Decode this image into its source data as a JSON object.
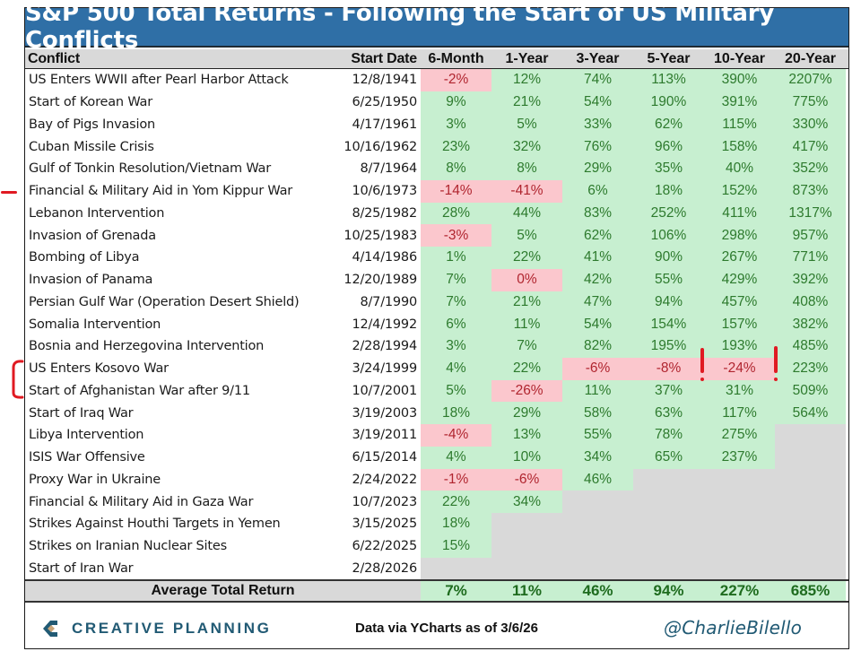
{
  "title": "S&P 500 Total Returns - Following the Start of US Military Conflicts",
  "columns": [
    "Conflict",
    "Start Date",
    "6-Month",
    "1-Year",
    "3-Year",
    "5-Year",
    "10-Year",
    "20-Year"
  ],
  "rows": [
    {
      "conflict": "US Enters WWII after Pearl Harbor Attack",
      "date": "12/8/1941",
      "values": [
        "-2%",
        "12%",
        "74%",
        "113%",
        "390%",
        "2207%"
      ]
    },
    {
      "conflict": "Start of Korean War",
      "date": "6/25/1950",
      "values": [
        "9%",
        "21%",
        "54%",
        "190%",
        "391%",
        "775%"
      ]
    },
    {
      "conflict": "Bay of Pigs Invasion",
      "date": "4/17/1961",
      "values": [
        "3%",
        "5%",
        "33%",
        "62%",
        "115%",
        "330%"
      ]
    },
    {
      "conflict": "Cuban Missile Crisis",
      "date": "10/16/1962",
      "values": [
        "23%",
        "32%",
        "76%",
        "96%",
        "158%",
        "417%"
      ]
    },
    {
      "conflict": "Gulf of Tonkin Resolution/Vietnam War",
      "date": "8/7/1964",
      "values": [
        "8%",
        "8%",
        "29%",
        "35%",
        "40%",
        "352%"
      ]
    },
    {
      "conflict": "Financial & Military Aid in Yom Kippur War",
      "date": "10/6/1973",
      "values": [
        "-14%",
        "-41%",
        "6%",
        "18%",
        "152%",
        "873%"
      ]
    },
    {
      "conflict": "Lebanon Intervention",
      "date": "8/25/1982",
      "values": [
        "28%",
        "44%",
        "83%",
        "252%",
        "411%",
        "1317%"
      ]
    },
    {
      "conflict": "Invasion of Grenada",
      "date": "10/25/1983",
      "values": [
        "-3%",
        "5%",
        "62%",
        "106%",
        "298%",
        "957%"
      ]
    },
    {
      "conflict": "Bombing of Libya",
      "date": "4/14/1986",
      "values": [
        "1%",
        "22%",
        "41%",
        "90%",
        "267%",
        "771%"
      ]
    },
    {
      "conflict": "Invasion of Panama",
      "date": "12/20/1989",
      "values": [
        "7%",
        "0%",
        "42%",
        "55%",
        "429%",
        "392%"
      ]
    },
    {
      "conflict": "Persian Gulf War (Operation Desert Shield)",
      "date": "8/7/1990",
      "values": [
        "7%",
        "21%",
        "47%",
        "94%",
        "457%",
        "408%"
      ]
    },
    {
      "conflict": "Somalia Intervention",
      "date": "12/4/1992",
      "values": [
        "6%",
        "11%",
        "54%",
        "154%",
        "157%",
        "382%"
      ]
    },
    {
      "conflict": "Bosnia and Herzegovina Intervention",
      "date": "2/28/1994",
      "values": [
        "3%",
        "7%",
        "82%",
        "195%",
        "193%",
        "485%"
      ]
    },
    {
      "conflict": "US Enters Kosovo War",
      "date": "3/24/1999",
      "values": [
        "4%",
        "22%",
        "-6%",
        "-8%",
        "-24%",
        "223%"
      ]
    },
    {
      "conflict": "Start of Afghanistan War after 9/11",
      "date": "10/7/2001",
      "values": [
        "5%",
        "-26%",
        "11%",
        "37%",
        "31%",
        "509%"
      ]
    },
    {
      "conflict": "Start of Iraq War",
      "date": "3/19/2003",
      "values": [
        "18%",
        "29%",
        "58%",
        "63%",
        "117%",
        "564%"
      ]
    },
    {
      "conflict": "Libya Intervention",
      "date": "3/19/2011",
      "values": [
        "-4%",
        "13%",
        "55%",
        "78%",
        "275%",
        null
      ]
    },
    {
      "conflict": "ISIS War Offensive",
      "date": "6/15/2014",
      "values": [
        "4%",
        "10%",
        "34%",
        "65%",
        "237%",
        null
      ]
    },
    {
      "conflict": "Proxy War in Ukraine",
      "date": "2/24/2022",
      "values": [
        "-1%",
        "-6%",
        "46%",
        null,
        null,
        null
      ]
    },
    {
      "conflict": "Financial & Military Aid in Gaza War",
      "date": "10/7/2023",
      "values": [
        "22%",
        "34%",
        null,
        null,
        null,
        null
      ]
    },
    {
      "conflict": "Strikes Against Houthi Targets in Yemen",
      "date": "3/15/2025",
      "values": [
        "18%",
        null,
        null,
        null,
        null,
        null
      ]
    },
    {
      "conflict": "Strikes on Iranian Nuclear Sites",
      "date": "6/22/2025",
      "values": [
        "15%",
        null,
        null,
        null,
        null,
        null
      ]
    },
    {
      "conflict": "Start of Iran War",
      "date": "2/28/2026",
      "values": [
        null,
        null,
        null,
        null,
        null,
        null
      ]
    }
  ],
  "average": {
    "label": "Average Total Return",
    "values": [
      "7%",
      "11%",
      "46%",
      "94%",
      "227%",
      "685%"
    ]
  },
  "footer": {
    "logo_text": "CREATIVE PLANNING",
    "source": "Data via YCharts as of 3/6/26",
    "handle": "@CharlieBilello"
  },
  "colors": {
    "title_bg": "#2f6fa6",
    "positive_bg": "#c7efd0",
    "positive_text": "#2d7a2d",
    "negative_bg": "#fbc7cd",
    "negative_text": "#b0252f",
    "empty_bg": "#d9d9d9",
    "annotation": "#e01a22"
  },
  "chart_data": {
    "type": "table",
    "title": "S&P 500 Total Returns - Following the Start of US Military Conflicts",
    "columns": [
      "Conflict",
      "Start Date",
      "6-Month",
      "1-Year",
      "3-Year",
      "5-Year",
      "10-Year",
      "20-Year"
    ],
    "unit": "percent total return",
    "series": [
      {
        "name": "6-Month",
        "values": [
          -2,
          9,
          3,
          23,
          8,
          -14,
          28,
          -3,
          1,
          7,
          7,
          6,
          3,
          4,
          5,
          18,
          -4,
          4,
          -1,
          22,
          18,
          15,
          null
        ]
      },
      {
        "name": "1-Year",
        "values": [
          12,
          21,
          5,
          32,
          8,
          -41,
          44,
          5,
          22,
          0,
          21,
          11,
          7,
          22,
          -26,
          29,
          13,
          10,
          -6,
          34,
          null,
          null,
          null
        ]
      },
      {
        "name": "3-Year",
        "values": [
          74,
          54,
          33,
          76,
          29,
          6,
          83,
          62,
          41,
          42,
          47,
          54,
          82,
          -6,
          11,
          58,
          55,
          34,
          46,
          null,
          null,
          null,
          null
        ]
      },
      {
        "name": "5-Year",
        "values": [
          113,
          190,
          62,
          96,
          35,
          18,
          252,
          106,
          90,
          55,
          94,
          154,
          195,
          -8,
          37,
          63,
          78,
          65,
          null,
          null,
          null,
          null,
          null
        ]
      },
      {
        "name": "10-Year",
        "values": [
          390,
          391,
          115,
          158,
          40,
          152,
          411,
          298,
          267,
          429,
          457,
          157,
          193,
          -24,
          31,
          117,
          275,
          237,
          null,
          null,
          null,
          null,
          null
        ]
      },
      {
        "name": "20-Year",
        "values": [
          2207,
          775,
          330,
          417,
          352,
          873,
          1317,
          957,
          771,
          392,
          408,
          382,
          485,
          223,
          509,
          564,
          null,
          null,
          null,
          null,
          null,
          null,
          null
        ]
      }
    ],
    "average": {
      "6-Month": 7,
      "1-Year": 11,
      "3-Year": 46,
      "5-Year": 94,
      "10-Year": 227,
      "20-Year": 685
    }
  }
}
